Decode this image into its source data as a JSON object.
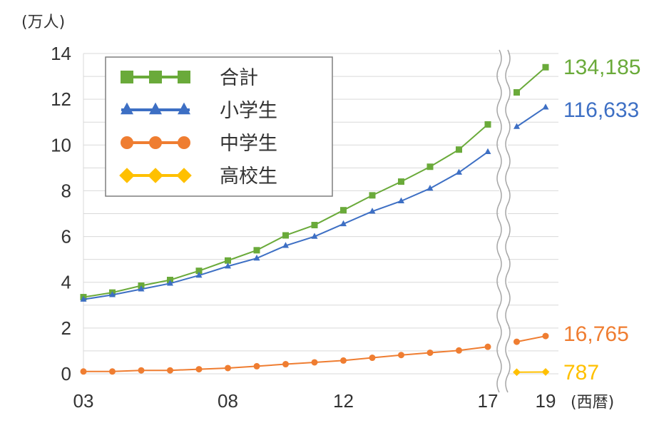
{
  "chart_data": {
    "type": "line",
    "y_unit_label": "(万人)",
    "x_unit_label": "(西暦)",
    "ylim": [
      0,
      14
    ],
    "yticks": [
      0,
      2,
      4,
      6,
      8,
      10,
      12,
      14
    ],
    "xlim": [
      2003,
      2019
    ],
    "xticks": [
      {
        "year": 2003,
        "label": "03"
      },
      {
        "year": 2008,
        "label": "08"
      },
      {
        "year": 2012,
        "label": "12"
      },
      {
        "year": 2017,
        "label": "17"
      },
      {
        "year": 2019,
        "label": "19"
      }
    ],
    "axis_break": true,
    "grid": "horizontal",
    "legend_position": "top-left",
    "series": [
      {
        "name": "合計",
        "color": "#6aaa3a",
        "marker": "square",
        "x": [
          2003,
          2004,
          2005,
          2006,
          2007,
          2008,
          2009,
          2010,
          2011,
          2012,
          2013,
          2014,
          2015,
          2016,
          2017,
          2018,
          2019
        ],
        "values": [
          3.35,
          3.55,
          3.85,
          4.1,
          4.5,
          4.95,
          5.4,
          6.05,
          6.5,
          7.15,
          7.8,
          8.4,
          9.05,
          9.8,
          10.9,
          12.3,
          13.4
        ],
        "end_label": "134,185"
      },
      {
        "name": "小学生",
        "color": "#3d6fc4",
        "marker": "triangle",
        "x": [
          2003,
          2004,
          2005,
          2006,
          2007,
          2008,
          2009,
          2010,
          2011,
          2012,
          2013,
          2014,
          2015,
          2016,
          2017,
          2018,
          2019
        ],
        "values": [
          3.25,
          3.45,
          3.7,
          3.95,
          4.3,
          4.7,
          5.05,
          5.6,
          6.0,
          6.55,
          7.1,
          7.55,
          8.1,
          8.8,
          9.7,
          10.8,
          11.65
        ],
        "end_label": "116,633"
      },
      {
        "name": "中学生",
        "color": "#ef7d31",
        "marker": "circle",
        "x": [
          2003,
          2004,
          2005,
          2006,
          2007,
          2008,
          2009,
          2010,
          2011,
          2012,
          2013,
          2014,
          2015,
          2016,
          2017,
          2018,
          2019
        ],
        "values": [
          0.1,
          0.1,
          0.15,
          0.15,
          0.2,
          0.25,
          0.33,
          0.42,
          0.5,
          0.58,
          0.7,
          0.82,
          0.92,
          1.02,
          1.18,
          1.4,
          1.65
        ],
        "end_label": "16,765"
      },
      {
        "name": "高校生",
        "color": "#ffc000",
        "marker": "diamond",
        "x": [
          2018,
          2019
        ],
        "values": [
          0.07,
          0.08
        ],
        "end_label": "787"
      }
    ]
  }
}
